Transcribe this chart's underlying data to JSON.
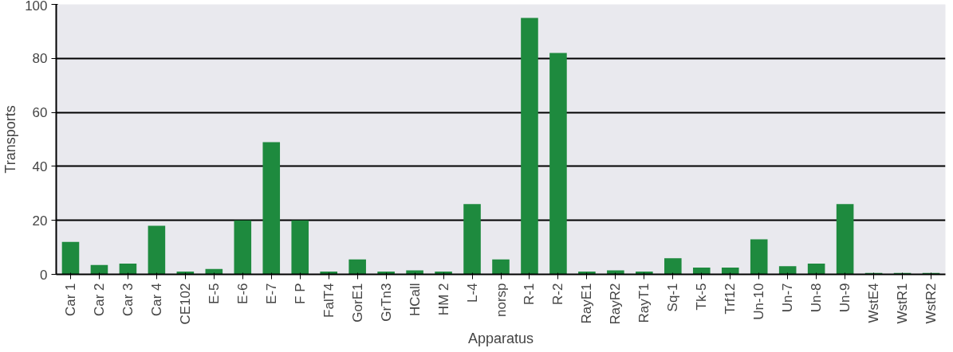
{
  "chart_data": {
    "type": "bar",
    "xlabel": "Apparatus",
    "ylabel": "Transports",
    "categories": [
      "Car 1",
      "Car 2",
      "Car 3",
      "Car 4",
      "CE102",
      "E-5",
      "E-6",
      "E-7",
      "F P",
      "FalT4",
      "GorE1",
      "GrTn3",
      "HCall",
      "HM 2",
      "L-4",
      "norsp",
      "R-1",
      "R-2",
      "RayE1",
      "RayR2",
      "RayT1",
      "Sq-1",
      "Tk-5",
      "Trf12",
      "Un-10",
      "Un-7",
      "Un-8",
      "Un-9",
      "WstE4",
      "WstR1",
      "WstR2"
    ],
    "values": [
      12,
      3.5,
      4,
      18,
      1,
      2,
      20,
      49,
      20,
      1,
      5.5,
      1,
      1.5,
      1,
      26,
      5.5,
      95,
      82,
      1,
      1.5,
      1,
      6,
      2.5,
      2.5,
      13,
      3,
      4,
      26,
      0.5,
      0.5,
      0.5
    ],
    "color": "#1e8a3e",
    "ylim": [
      0,
      100
    ],
    "yticks": [
      0,
      20,
      40,
      60,
      80,
      100
    ],
    "grid": "y"
  }
}
